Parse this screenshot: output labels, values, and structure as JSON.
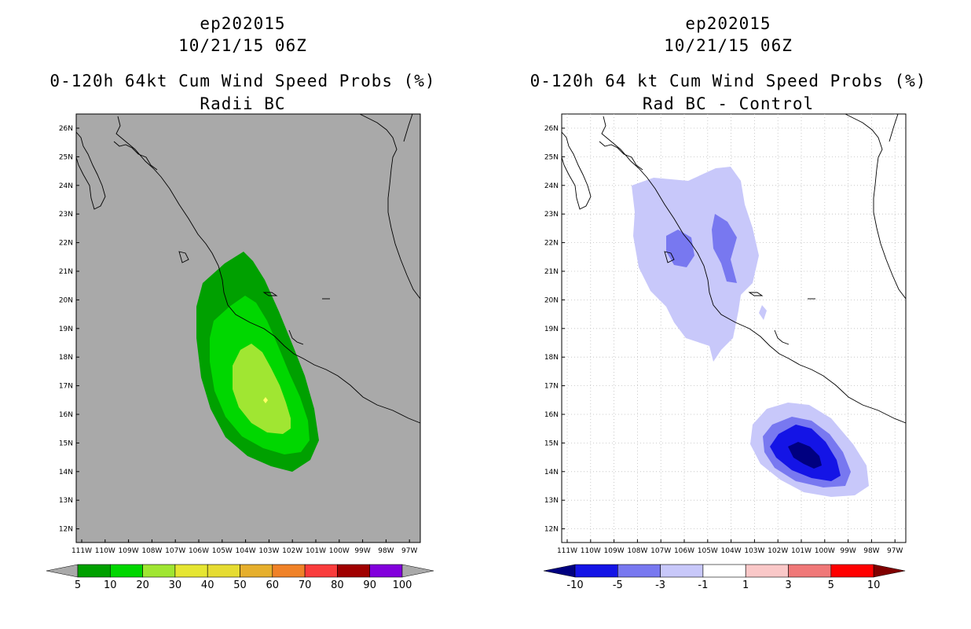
{
  "left_panel": {
    "title_lines": [
      "ep202015",
      "10/21/15 06Z",
      "0-120h 64kt Cum Wind Speed Probs (%)",
      "Radii BC"
    ],
    "map_background": "#a9a9a9",
    "lat_labels": [
      "26N",
      "25N",
      "24N",
      "23N",
      "22N",
      "21N",
      "20N",
      "19N",
      "18N",
      "17N",
      "16N",
      "15N",
      "14N",
      "13N",
      "12N"
    ],
    "lon_labels": [
      "111W",
      "110W",
      "109W",
      "108W",
      "107W",
      "106W",
      "105W",
      "104W",
      "103W",
      "102W",
      "101W",
      "100W",
      "99W",
      "98W",
      "97W"
    ],
    "contour_colors": {
      "band_5": "#00a000",
      "band_10": "#00d700",
      "band_20": "#a0e632"
    },
    "storm_marker_color": "#ffff66",
    "colorbar": {
      "labels": [
        "5",
        "10",
        "20",
        "30",
        "40",
        "50",
        "60",
        "70",
        "80",
        "90",
        "100"
      ],
      "colors": [
        "#00a000",
        "#00d700",
        "#a0e632",
        "#e6e632",
        "#e6dc32",
        "#e6af2d",
        "#f08228",
        "#fa3c3c",
        "#a00000",
        "#8200dc"
      ],
      "end_color": "#a9a9a9"
    }
  },
  "right_panel": {
    "title_lines": [
      "ep202015",
      "10/21/15 06Z",
      "0-120h 64 kt Cum Wind Speed Probs (%)",
      "Rad BC - Control"
    ],
    "map_background": "#ffffff",
    "lat_labels": [
      "26N",
      "25N",
      "24N",
      "23N",
      "22N",
      "21N",
      "20N",
      "19N",
      "18N",
      "17N",
      "16N",
      "15N",
      "14N",
      "13N",
      "12N"
    ],
    "lon_labels": [
      "111W",
      "110W",
      "109W",
      "108W",
      "107W",
      "106W",
      "105W",
      "104W",
      "103W",
      "102W",
      "101W",
      "100W",
      "99W",
      "98W",
      "97W"
    ],
    "contour_colors": {
      "band_minus3_minus1": "#c8c8fa",
      "band_minus5_minus3": "#7878f0",
      "band_minus10_minus5": "#1414e6",
      "band_lt_minus10": "#000080"
    },
    "colorbar": {
      "labels": [
        "-10",
        "-5",
        "-3",
        "-1",
        "1",
        "3",
        "5",
        "10"
      ],
      "colors": [
        "#1414e6",
        "#7878f0",
        "#c8c8fa",
        "#ffffff",
        "#fac8c8",
        "#f07878",
        "#ff0000"
      ],
      "low_end_color": "#000080",
      "high_end_color": "#800000"
    }
  }
}
